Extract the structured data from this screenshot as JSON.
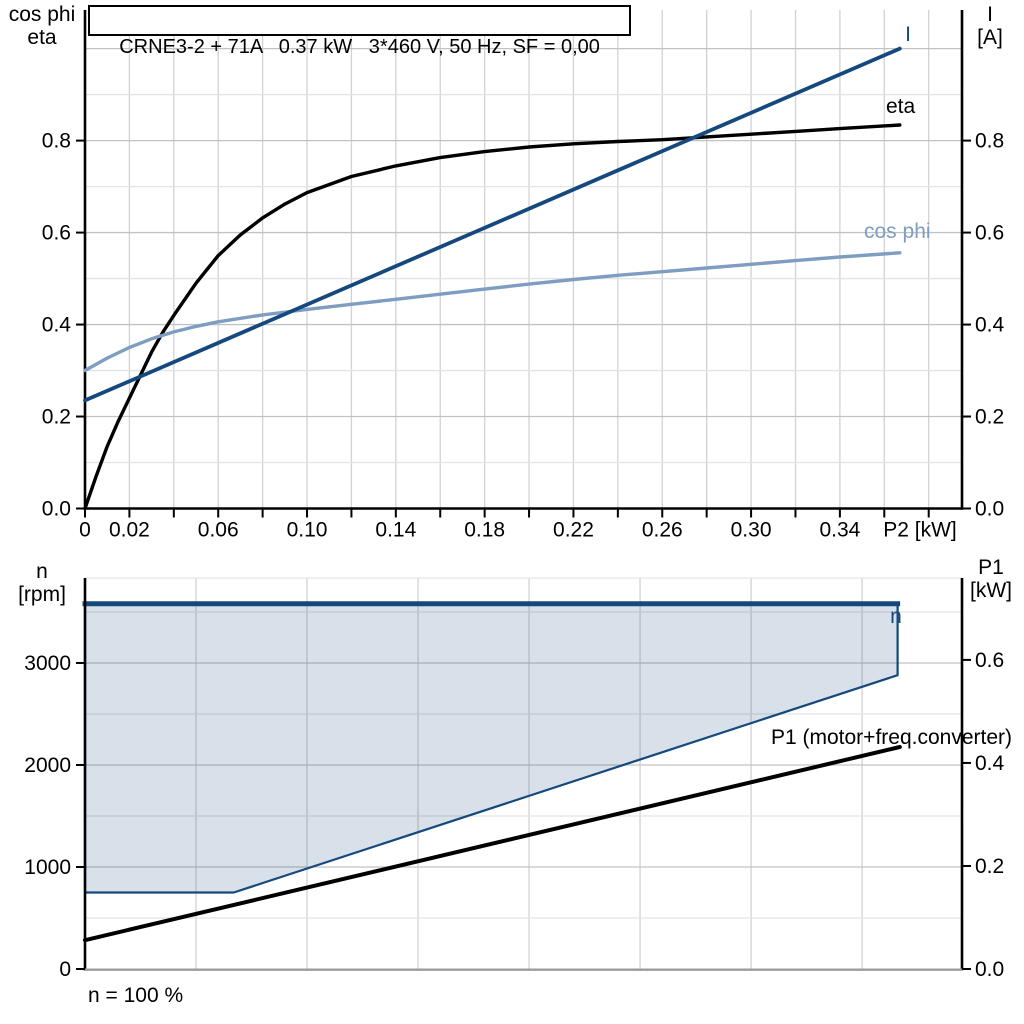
{
  "title_box": {
    "text": "CRNE3-2 + 71A   0.37 kW   3*460 V, 50 Hz, SF = 0,00"
  },
  "colors": {
    "dark_blue": "#15497e",
    "light_blue": "#7e9dc0",
    "black": "#000000",
    "envelope_fill": "rgba(21,73,126,0.17)"
  },
  "top_chart": {
    "axis_left": {
      "line1": "cos phi",
      "line2": "eta"
    },
    "axis_right": {
      "line1": "I",
      "line2": "[A]"
    },
    "x_unit": "P2 [kW]"
  },
  "bottom_chart": {
    "axis_left": {
      "line1": "n",
      "line2": "[rpm]"
    },
    "axis_right": {
      "line1": "P1",
      "line2": "[kW]"
    },
    "footnote": "n = 100 %"
  },
  "chart_data": [
    {
      "type": "line",
      "title": "CRNE3-2 + 71A   0.37 kW   3*460 V, 50 Hz, SF = 0,00",
      "xlabel": "P2 [kW]",
      "ylabel_left": "cos phi / eta",
      "ylabel_right": "I [A]",
      "xlim": [
        0,
        0.395
      ],
      "ylim": [
        0,
        1.084
      ],
      "x_tick_values": [
        0,
        0.02,
        0.06,
        0.1,
        0.14,
        0.18,
        0.22,
        0.26,
        0.3,
        0.34
      ],
      "x_tick_labels": [
        "0",
        "0.02",
        "0.06",
        "0.10",
        "0.14",
        "0.18",
        "0.22",
        "0.26",
        "0.30",
        "0.34"
      ],
      "x_minor_tick_step": 0.02,
      "y_tick_values": [
        0,
        0.2,
        0.4,
        0.6,
        0.8
      ],
      "y_tick_labels": [
        "0.0",
        "0.2",
        "0.4",
        "0.6",
        "0.8"
      ],
      "grid": {
        "vertical_step": 0.02,
        "horizontal_minor_step": 0.1,
        "horizontal_major_step": 0.2
      },
      "legend_position": "end-of-line labels",
      "series": [
        {
          "name": "eta",
          "color": "#000000",
          "width": 3.4,
          "points": [
            [
              0,
              0
            ],
            [
              0.005,
              0.07
            ],
            [
              0.01,
              0.135
            ],
            [
              0.015,
              0.19
            ],
            [
              0.02,
              0.24
            ],
            [
              0.025,
              0.29
            ],
            [
              0.03,
              0.34
            ],
            [
              0.035,
              0.383
            ],
            [
              0.04,
              0.42
            ],
            [
              0.05,
              0.49
            ],
            [
              0.06,
              0.55
            ],
            [
              0.07,
              0.595
            ],
            [
              0.08,
              0.632
            ],
            [
              0.09,
              0.662
            ],
            [
              0.1,
              0.687
            ],
            [
              0.12,
              0.722
            ],
            [
              0.14,
              0.745
            ],
            [
              0.16,
              0.763
            ],
            [
              0.18,
              0.776
            ],
            [
              0.2,
              0.786
            ],
            [
              0.22,
              0.793
            ],
            [
              0.24,
              0.798
            ],
            [
              0.26,
              0.802
            ],
            [
              0.28,
              0.808
            ],
            [
              0.3,
              0.814
            ],
            [
              0.32,
              0.82
            ],
            [
              0.34,
              0.826
            ],
            [
              0.367,
              0.834
            ]
          ]
        },
        {
          "name": "cos phi",
          "color": "#7e9dc0",
          "width": 3.4,
          "points": [
            [
              0,
              0.3
            ],
            [
              0.01,
              0.327
            ],
            [
              0.02,
              0.35
            ],
            [
              0.03,
              0.369
            ],
            [
              0.04,
              0.384
            ],
            [
              0.05,
              0.396
            ],
            [
              0.06,
              0.406
            ],
            [
              0.08,
              0.421
            ],
            [
              0.1,
              0.433
            ],
            [
              0.12,
              0.444
            ],
            [
              0.14,
              0.455
            ],
            [
              0.16,
              0.466
            ],
            [
              0.18,
              0.477
            ],
            [
              0.2,
              0.488
            ],
            [
              0.22,
              0.498
            ],
            [
              0.24,
              0.507
            ],
            [
              0.26,
              0.515
            ],
            [
              0.28,
              0.523
            ],
            [
              0.3,
              0.531
            ],
            [
              0.32,
              0.539
            ],
            [
              0.34,
              0.547
            ],
            [
              0.367,
              0.556
            ]
          ]
        },
        {
          "name": "I",
          "color": "#15497e",
          "width": 3.8,
          "points": [
            [
              0,
              0.235
            ],
            [
              0.367,
              1.0
            ]
          ]
        }
      ]
    },
    {
      "type": "area+line",
      "xlabel": "",
      "ylabel_left": "n [rpm]",
      "ylabel_right": "P1 [kW]",
      "xlim": [
        0,
        0.395
      ],
      "ylim_left": [
        0,
        3833
      ],
      "ylim_right": [
        0,
        0.759
      ],
      "y_left_tick_values": [
        0,
        1000,
        2000,
        3000
      ],
      "y_left_tick_labels": [
        "0",
        "1000",
        "2000",
        "3000"
      ],
      "y_right_tick_values": [
        0,
        0.2,
        0.4,
        0.6
      ],
      "y_right_tick_labels": [
        "0.0",
        "0.2",
        "0.4",
        "0.6"
      ],
      "grid": {
        "vertical_step": 0.05,
        "horizontal_minor_step": 500,
        "horizontal_major_step": 1000
      },
      "footnote": "n = 100 %",
      "series": [
        {
          "name": "n",
          "kind": "envelope",
          "axis": "left",
          "color": "#15497e",
          "fill": "rgba(21,73,126,0.17)",
          "width": 2.2,
          "top_edge_width": 5,
          "points": [
            [
              0,
              3580
            ],
            [
              0.366,
              3580
            ],
            [
              0.366,
              2880
            ],
            [
              0.067,
              750
            ],
            [
              0,
              750
            ]
          ],
          "top_edge": [
            [
              0,
              3580
            ],
            [
              0.366,
              3580
            ]
          ]
        },
        {
          "name": "P1 (motor+freq.converter)",
          "kind": "line",
          "axis": "right",
          "color": "#000000",
          "width": 4,
          "points": [
            [
              0,
              0.056
            ],
            [
              0.367,
              0.431
            ]
          ]
        }
      ]
    }
  ]
}
